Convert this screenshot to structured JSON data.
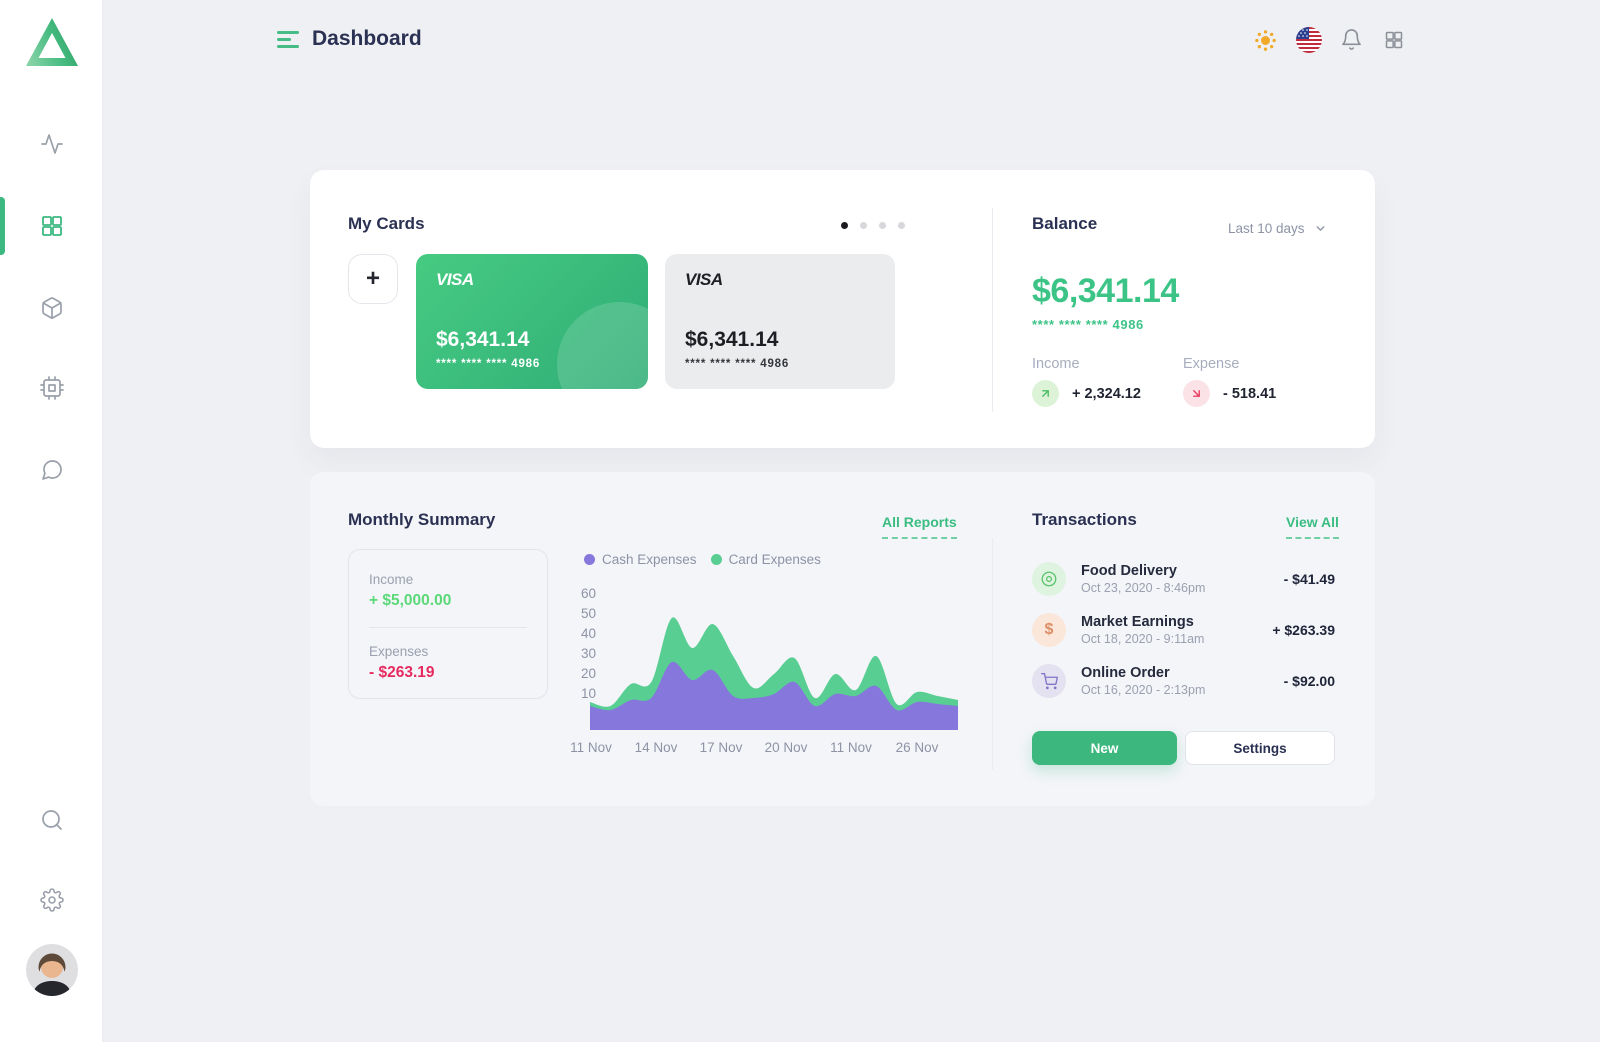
{
  "header": {
    "title": "Dashboard",
    "icons": [
      "theme-sun-icon",
      "language-flag-us-icon",
      "notifications-bell-icon",
      "apps-grid-icon"
    ],
    "notification_badge": true
  },
  "sidebar": {
    "nav_icons": [
      "activity-icon",
      "dashboard-grid-icon",
      "package-icon",
      "cpu-icon",
      "chat-icon"
    ],
    "active_item": "dashboard-grid-icon",
    "footer_icons": [
      "search-icon",
      "settings-gear-icon",
      "user-avatar"
    ]
  },
  "my_cards": {
    "title": "My Cards",
    "add_button_label": "+",
    "carousel": {
      "count": 4,
      "active_index": 0
    },
    "cards": [
      {
        "brand": "VISA",
        "balance": "$6,341.14",
        "number_masked": "**** **** **** 4986",
        "style": "green"
      },
      {
        "brand": "VISA",
        "balance": "$6,341.14",
        "number_masked": "**** **** **** 4986",
        "style": "gray"
      }
    ]
  },
  "balance": {
    "title": "Balance",
    "range_label": "Last  10 days",
    "amount": "$6,341.14",
    "card_number_masked": "**** **** **** 4986",
    "income": {
      "label": "Income",
      "value": "+ 2,324.12",
      "icon": "arrow-up-right-icon",
      "icon_bg": "#ddf3d7",
      "icon_color": "#4dbd67"
    },
    "expense": {
      "label": "Expense",
      "value": "- 518.41",
      "icon": "arrow-down-right-icon",
      "icon_bg": "#fbe2e7",
      "icon_color": "#e83e63"
    }
  },
  "monthly_summary": {
    "title": "Monthly Summary",
    "link_label": "All Reports",
    "income_label": "Income",
    "income_value": "+ $5,000.00",
    "expenses_label": "Expenses",
    "expenses_value": "- $263.19"
  },
  "chart_data": {
    "type": "area",
    "stacked": true,
    "legend_position": "top",
    "grid": false,
    "x_labels": [
      "11 Nov",
      "14 Nov",
      "17 Nov",
      "20 Nov",
      "11 Nov",
      "26 Nov"
    ],
    "yticks": [
      60,
      50,
      40,
      30,
      20,
      10
    ],
    "ylim": [
      0,
      60
    ],
    "series": [
      {
        "name": "Cash Expenses",
        "color": "#8677dd",
        "values": [
          4,
          2,
          7,
          8,
          26,
          17,
          22,
          9,
          8,
          10,
          16,
          4,
          10,
          9,
          14,
          2,
          6,
          5,
          4
        ]
      },
      {
        "name": "Card Expenses",
        "color": "#58ce92",
        "values": [
          2,
          2,
          8,
          8,
          22,
          16,
          23,
          20,
          5,
          10,
          12,
          4,
          10,
          3,
          15,
          3,
          5,
          4,
          3
        ]
      }
    ]
  },
  "transactions": {
    "title": "Transactions",
    "link_label": "View All",
    "items": [
      {
        "name": "Food Delivery",
        "date": "Oct 23, 2020 - 8:46pm",
        "amount": "- $41.49",
        "icon": "disc-icon",
        "icon_bg": "#dff4e0",
        "icon_color": "#5cc46e"
      },
      {
        "name": "Market Earnings",
        "date": "Oct 18, 2020 - 9:11am",
        "amount": "+ $263.39",
        "icon": "dollar-icon",
        "icon_bg": "#fbe7da",
        "icon_color": "#dd8e66",
        "icon_glyph": "$"
      },
      {
        "name": "Online Order",
        "date": "Oct 16, 2020 - 2:13pm",
        "amount": "- $92.00",
        "icon": "cart-icon",
        "icon_bg": "#e4e1f0",
        "icon_color": "#8175c8"
      }
    ],
    "new_button_label": "New",
    "settings_button_label": "Settings"
  },
  "colors": {
    "accent_green": "#3cb981",
    "balance_green": "#3cc487",
    "income_green": "#5bd878",
    "expense_red": "#e62a5f",
    "chart_purple": "#8677dd",
    "chart_green": "#58ce92",
    "page_bg": "#eff0f3",
    "panel_bg": "#ffffff",
    "panel_soft_bg": "#f4f5f9"
  }
}
